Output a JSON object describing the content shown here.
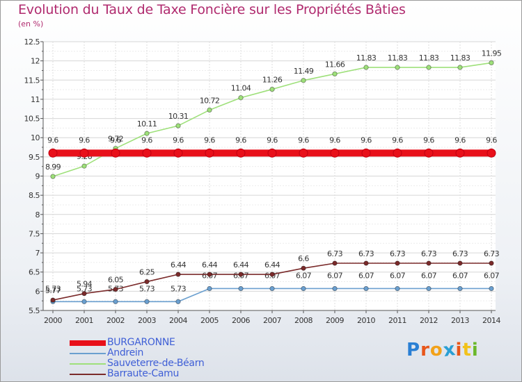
{
  "chart_data": {
    "type": "line",
    "title": "Evolution du Taux de Taxe Foncière sur les Propriétés Bâties",
    "unit_label": "(en %)",
    "xlabel": "",
    "ylabel": "(en %)",
    "categories": [
      "2000",
      "2001",
      "2002",
      "2003",
      "2004",
      "2005",
      "2006",
      "2007",
      "2008",
      "2009",
      "2010",
      "2011",
      "2012",
      "2013",
      "2014"
    ],
    "ylim": [
      5.5,
      12.5
    ],
    "yticks": [
      "5.5",
      "6",
      "6.5",
      "7",
      "7.5",
      "8",
      "8.5",
      "9",
      "9.5",
      "10",
      "10.5",
      "11",
      "11.5",
      "12",
      "12.5"
    ],
    "grid": true,
    "legend_position": "bottom-left",
    "series": [
      {
        "name": "BURGARONNE",
        "color": "#e8101a",
        "values": [
          9.6,
          9.6,
          9.6,
          9.6,
          9.6,
          9.6,
          9.6,
          9.6,
          9.6,
          9.6,
          9.6,
          9.6,
          9.6,
          9.6,
          9.6
        ],
        "labels": [
          "9.6",
          "9.6",
          "9.6",
          "9.6",
          "9.6",
          "9.6",
          "9.6",
          "9.6",
          "9.6",
          "9.6",
          "9.6",
          "9.6",
          "9.6",
          "9.6",
          "9.6"
        ]
      },
      {
        "name": "Andrein",
        "color": "#6a9fcf",
        "values": [
          5.73,
          5.73,
          5.73,
          5.73,
          5.73,
          6.07,
          6.07,
          6.07,
          6.07,
          6.07,
          6.07,
          6.07,
          6.07,
          6.07,
          6.07
        ],
        "labels": [
          "5.73",
          "5.73",
          "5.73",
          "5.73",
          "5.73",
          "6.07",
          "6.07",
          "6.07",
          "6.07",
          "6.07",
          "6.07",
          "6.07",
          "6.07",
          "6.07",
          "6.07"
        ]
      },
      {
        "name": "Sauveterre-de-Béarn",
        "color": "#9ee07a",
        "values": [
          8.99,
          9.26,
          9.72,
          10.11,
          10.31,
          10.72,
          11.04,
          11.26,
          11.49,
          11.66,
          11.83,
          11.83,
          11.83,
          11.83,
          11.95
        ],
        "labels": [
          "8.99",
          "9.26",
          "9.72",
          "10.11",
          "10.31",
          "10.72",
          "11.04",
          "11.26",
          "11.49",
          "11.66",
          "11.83",
          "11.83",
          "11.83",
          "11.83",
          "11.95"
        ]
      },
      {
        "name": "Barraute-Camu",
        "color": "#7a2a2a",
        "values": [
          5.77,
          5.94,
          6.05,
          6.25,
          6.44,
          6.44,
          6.44,
          6.44,
          6.6,
          6.73,
          6.73,
          6.73,
          6.73,
          6.73,
          6.73
        ],
        "labels": [
          "5.77",
          "5.94",
          "6.05",
          "6.25",
          "6.44",
          "6.44",
          "6.44",
          "6.44",
          "6.6",
          "6.73",
          "6.73",
          "6.73",
          "6.73",
          "6.73",
          "6.73"
        ]
      }
    ]
  },
  "logo": {
    "text": "Proxiti",
    "colors": [
      "#2a7fd4",
      "#e8561a",
      "#f2a21a",
      "#2a9fd4",
      "#e8561a",
      "#f2c21a",
      "#6ab82a"
    ]
  }
}
